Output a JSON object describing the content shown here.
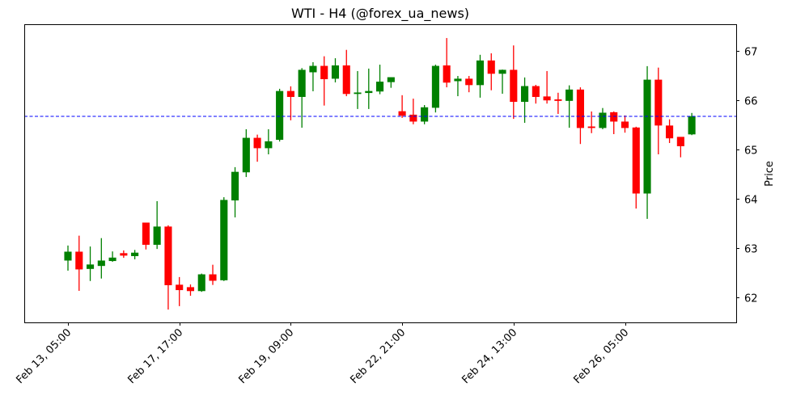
{
  "chart_data": {
    "type": "candlestick",
    "title": "WTI - H4 (@forex_ua_news)",
    "xlabel": "",
    "ylabel": "Price",
    "ylim": [
      61.49,
      67.54
    ],
    "y_ticks": [
      62,
      63,
      64,
      65,
      66,
      67
    ],
    "x_tick_labels": [
      {
        "index": 0,
        "label": "Feb 13, 05:00"
      },
      {
        "index": 10,
        "label": "Feb 17, 17:00"
      },
      {
        "index": 20,
        "label": "Feb 19, 09:00"
      },
      {
        "index": 30,
        "label": "Feb 22, 21:00"
      },
      {
        "index": 40,
        "label": "Feb 24, 13:00"
      },
      {
        "index": 50,
        "label": "Feb 26, 05:00"
      }
    ],
    "grid": false,
    "reference_line": {
      "value": 65.67,
      "style": "dashed",
      "color": "#0000ff"
    },
    "colors": {
      "up": "#008000",
      "down": "#ff0000"
    },
    "candles": [
      {
        "o": 62.75,
        "h": 63.05,
        "l": 62.54,
        "c": 62.92
      },
      {
        "o": 62.92,
        "h": 63.25,
        "l": 62.13,
        "c": 62.57
      },
      {
        "o": 62.58,
        "h": 63.03,
        "l": 62.33,
        "c": 62.66
      },
      {
        "o": 62.64,
        "h": 63.2,
        "l": 62.38,
        "c": 62.74
      },
      {
        "o": 62.74,
        "h": 62.93,
        "l": 62.72,
        "c": 62.8
      },
      {
        "o": 62.89,
        "h": 62.95,
        "l": 62.8,
        "c": 62.85
      },
      {
        "o": 62.84,
        "h": 62.96,
        "l": 62.77,
        "c": 62.9
      },
      {
        "o": 63.51,
        "h": 63.51,
        "l": 62.97,
        "c": 63.07
      },
      {
        "o": 63.07,
        "h": 63.95,
        "l": 62.98,
        "c": 63.43
      },
      {
        "o": 63.43,
        "h": 63.46,
        "l": 61.75,
        "c": 62.25
      },
      {
        "o": 62.25,
        "h": 62.41,
        "l": 61.82,
        "c": 62.15
      },
      {
        "o": 62.2,
        "h": 62.26,
        "l": 62.03,
        "c": 62.13
      },
      {
        "o": 62.13,
        "h": 62.48,
        "l": 62.11,
        "c": 62.46
      },
      {
        "o": 62.46,
        "h": 62.66,
        "l": 62.25,
        "c": 62.34
      },
      {
        "o": 62.35,
        "h": 64.03,
        "l": 62.33,
        "c": 63.97
      },
      {
        "o": 63.97,
        "h": 64.64,
        "l": 63.62,
        "c": 64.54
      },
      {
        "o": 64.54,
        "h": 65.41,
        "l": 64.44,
        "c": 65.23
      },
      {
        "o": 65.23,
        "h": 65.3,
        "l": 64.75,
        "c": 65.03
      },
      {
        "o": 65.03,
        "h": 65.41,
        "l": 64.9,
        "c": 65.16
      },
      {
        "o": 65.2,
        "h": 66.23,
        "l": 65.16,
        "c": 66.18
      },
      {
        "o": 66.18,
        "h": 66.28,
        "l": 65.59,
        "c": 66.07
      },
      {
        "o": 66.07,
        "h": 66.65,
        "l": 65.44,
        "c": 66.61
      },
      {
        "o": 66.57,
        "h": 66.77,
        "l": 66.18,
        "c": 66.69
      },
      {
        "o": 66.69,
        "h": 66.89,
        "l": 65.89,
        "c": 66.43
      },
      {
        "o": 66.44,
        "h": 66.85,
        "l": 66.36,
        "c": 66.7
      },
      {
        "o": 66.7,
        "h": 67.02,
        "l": 66.08,
        "c": 66.13
      },
      {
        "o": 66.13,
        "h": 66.59,
        "l": 65.82,
        "c": 66.15
      },
      {
        "o": 66.15,
        "h": 66.64,
        "l": 65.82,
        "c": 66.18
      },
      {
        "o": 66.18,
        "h": 66.72,
        "l": 66.12,
        "c": 66.37
      },
      {
        "o": 66.37,
        "h": 66.46,
        "l": 66.25,
        "c": 66.46
      },
      {
        "o": 65.77,
        "h": 66.1,
        "l": 65.64,
        "c": 65.69
      },
      {
        "o": 65.7,
        "h": 66.03,
        "l": 65.51,
        "c": 65.57
      },
      {
        "o": 65.57,
        "h": 65.9,
        "l": 65.51,
        "c": 65.85
      },
      {
        "o": 65.85,
        "h": 66.72,
        "l": 65.75,
        "c": 66.69
      },
      {
        "o": 66.7,
        "h": 67.26,
        "l": 66.26,
        "c": 66.36
      },
      {
        "o": 66.39,
        "h": 66.49,
        "l": 66.08,
        "c": 66.43
      },
      {
        "o": 66.43,
        "h": 66.49,
        "l": 66.16,
        "c": 66.31
      },
      {
        "o": 66.31,
        "h": 66.92,
        "l": 66.05,
        "c": 66.8
      },
      {
        "o": 66.8,
        "h": 66.95,
        "l": 66.2,
        "c": 66.54
      },
      {
        "o": 66.54,
        "h": 66.62,
        "l": 66.13,
        "c": 66.61
      },
      {
        "o": 66.61,
        "h": 67.11,
        "l": 65.62,
        "c": 65.97
      },
      {
        "o": 65.97,
        "h": 66.46,
        "l": 65.54,
        "c": 66.28
      },
      {
        "o": 66.28,
        "h": 66.31,
        "l": 65.93,
        "c": 66.07
      },
      {
        "o": 66.07,
        "h": 66.59,
        "l": 65.93,
        "c": 66.0
      },
      {
        "o": 66.01,
        "h": 66.15,
        "l": 65.72,
        "c": 65.99
      },
      {
        "o": 65.99,
        "h": 66.3,
        "l": 65.44,
        "c": 66.21
      },
      {
        "o": 66.21,
        "h": 66.26,
        "l": 65.11,
        "c": 65.44
      },
      {
        "o": 65.46,
        "h": 65.77,
        "l": 65.33,
        "c": 65.44
      },
      {
        "o": 65.44,
        "h": 65.84,
        "l": 65.41,
        "c": 65.74
      },
      {
        "o": 65.75,
        "h": 65.77,
        "l": 65.31,
        "c": 65.57
      },
      {
        "o": 65.56,
        "h": 65.69,
        "l": 65.34,
        "c": 65.44
      },
      {
        "o": 65.44,
        "h": 65.46,
        "l": 63.8,
        "c": 64.11
      },
      {
        "o": 64.11,
        "h": 66.69,
        "l": 63.59,
        "c": 66.41
      },
      {
        "o": 66.41,
        "h": 66.66,
        "l": 64.9,
        "c": 65.49
      },
      {
        "o": 65.48,
        "h": 65.61,
        "l": 65.13,
        "c": 65.23
      },
      {
        "o": 65.25,
        "h": 65.25,
        "l": 64.84,
        "c": 65.07
      },
      {
        "o": 65.31,
        "h": 65.74,
        "l": 65.29,
        "c": 65.67
      }
    ]
  }
}
